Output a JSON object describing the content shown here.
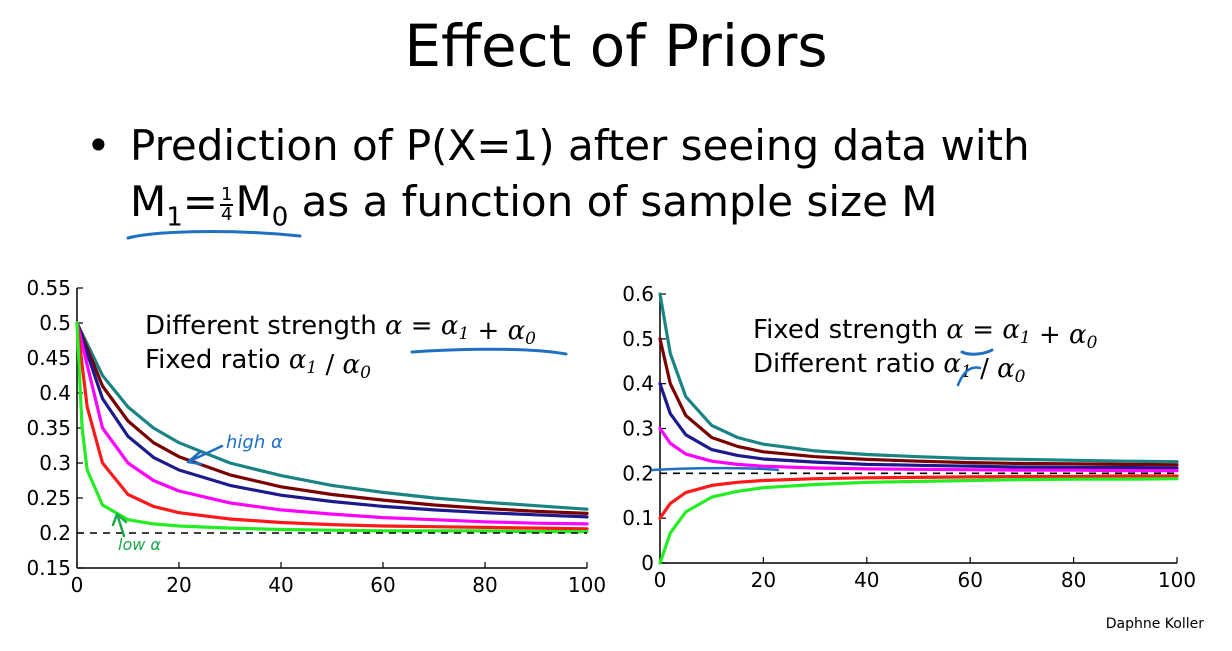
{
  "slide": {
    "title": "Effect of Priors",
    "bullet_symbol": "•",
    "bullet_line1": "Prediction of P(X=1) after seeing data with",
    "bullet_line2_formula": {
      "m1": "M",
      "sub1": "1",
      "eq": "=",
      "frac_num": "1",
      "frac_den": "4",
      "m0": "M",
      "sub0": "0"
    },
    "bullet_line2_rest": "as a function of sample size M",
    "credit": "Daphne Koller"
  },
  "handwriting": {
    "left_high": "high α",
    "left_low": "low α"
  },
  "colors": {
    "teal": "#1a8484",
    "maroon": "#7a0000",
    "navy": "#1c1a8c",
    "magenta": "#ff00ff",
    "red": "#ff1a1a",
    "green": "#22ee22",
    "ink_blue": "#1f6fc2",
    "ink_green": "#1aa84a"
  },
  "chart_data": [
    {
      "type": "line",
      "xlim": [
        0,
        100
      ],
      "ylim": [
        0.15,
        0.55
      ],
      "xticks": [
        0,
        20,
        40,
        60,
        80,
        100
      ],
      "xtick_labels": [
        "0",
        "20",
        "40",
        "60",
        "80",
        "100"
      ],
      "yticks": [
        0.15,
        0.2,
        0.25,
        0.3,
        0.35,
        0.4,
        0.45,
        0.5,
        0.55
      ],
      "ytick_labels": [
        "0.15",
        "0.2",
        "0.25",
        "0.3",
        "0.35",
        "0.4",
        "0.45",
        "0.5",
        "0.55"
      ],
      "annotation_lines": [
        {
          "text": "Different strength ",
          "formula": [
            "α",
            " = ",
            "α",
            "1",
            " + ",
            "α",
            "0"
          ]
        },
        {
          "text": "Fixed ratio ",
          "formula": [
            "α",
            "1",
            " / ",
            "α",
            "0"
          ]
        }
      ],
      "reference_line": {
        "y": 0.2,
        "style": "dashed"
      },
      "series": [
        {
          "color": "#1a8484",
          "x": [
            0,
            5,
            10,
            15,
            20,
            30,
            40,
            50,
            60,
            70,
            80,
            90,
            100
          ],
          "y": [
            0.5,
            0.425,
            0.38,
            0.35,
            0.329,
            0.3,
            0.282,
            0.268,
            0.258,
            0.25,
            0.244,
            0.239,
            0.234
          ]
        },
        {
          "color": "#7a0000",
          "x": [
            0,
            5,
            10,
            15,
            20,
            30,
            40,
            50,
            60,
            70,
            80,
            90,
            100
          ],
          "y": [
            0.5,
            0.41,
            0.36,
            0.329,
            0.309,
            0.283,
            0.266,
            0.255,
            0.247,
            0.24,
            0.235,
            0.231,
            0.228
          ]
        },
        {
          "color": "#1c1a8c",
          "x": [
            0,
            5,
            10,
            15,
            20,
            30,
            40,
            50,
            60,
            70,
            80,
            90,
            100
          ],
          "y": [
            0.5,
            0.392,
            0.338,
            0.308,
            0.29,
            0.268,
            0.254,
            0.245,
            0.238,
            0.233,
            0.229,
            0.226,
            0.223
          ]
        },
        {
          "color": "#ff00ff",
          "x": [
            0,
            5,
            10,
            15,
            20,
            30,
            40,
            50,
            60,
            70,
            80,
            90,
            100
          ],
          "y": [
            0.5,
            0.35,
            0.3,
            0.275,
            0.26,
            0.243,
            0.233,
            0.227,
            0.222,
            0.219,
            0.216,
            0.214,
            0.213
          ]
        },
        {
          "color": "#ff1a1a",
          "x": [
            0,
            2,
            5,
            10,
            15,
            20,
            30,
            40,
            50,
            60,
            70,
            80,
            90,
            100
          ],
          "y": [
            0.5,
            0.38,
            0.3,
            0.255,
            0.238,
            0.229,
            0.22,
            0.215,
            0.212,
            0.21,
            0.209,
            0.208,
            0.207,
            0.206
          ]
        },
        {
          "color": "#22ee22",
          "x": [
            0,
            1,
            2,
            5,
            10,
            15,
            20,
            30,
            40,
            50,
            60,
            70,
            80,
            90,
            100
          ],
          "y": [
            0.5,
            0.35,
            0.29,
            0.24,
            0.219,
            0.213,
            0.21,
            0.207,
            0.205,
            0.204,
            0.203,
            0.203,
            0.203,
            0.202,
            0.202
          ]
        }
      ]
    },
    {
      "type": "line",
      "xlim": [
        0,
        100
      ],
      "ylim": [
        0,
        0.6
      ],
      "xticks": [
        0,
        20,
        40,
        60,
        80,
        100
      ],
      "xtick_labels": [
        "0",
        "20",
        "40",
        "60",
        "80",
        "100"
      ],
      "yticks": [
        0,
        0.1,
        0.2,
        0.3,
        0.4,
        0.5,
        0.6
      ],
      "ytick_labels": [
        "0",
        "0.1",
        "0.2",
        "0.3",
        "0.4",
        "0.5",
        "0.6"
      ],
      "annotation_lines": [
        {
          "text": "Fixed strength ",
          "formula": [
            "α",
            " = ",
            "α",
            "1",
            " + ",
            "α",
            "0"
          ]
        },
        {
          "text": "Different ratio ",
          "formula": [
            "α",
            "1",
            " / ",
            "α",
            "0"
          ]
        }
      ],
      "reference_line": {
        "y": 0.2,
        "style": "dashed"
      },
      "series": [
        {
          "color": "#1a8484",
          "x": [
            0,
            2,
            5,
            10,
            15,
            20,
            30,
            40,
            50,
            60,
            70,
            80,
            90,
            100
          ],
          "y": [
            0.6,
            0.467,
            0.371,
            0.307,
            0.28,
            0.265,
            0.25,
            0.242,
            0.237,
            0.233,
            0.231,
            0.229,
            0.227,
            0.226
          ]
        },
        {
          "color": "#7a0000",
          "x": [
            0,
            2,
            5,
            10,
            15,
            20,
            30,
            40,
            50,
            60,
            70,
            80,
            90,
            100
          ],
          "y": [
            0.5,
            0.4,
            0.329,
            0.28,
            0.26,
            0.248,
            0.237,
            0.231,
            0.227,
            0.224,
            0.222,
            0.221,
            0.22,
            0.219
          ]
        },
        {
          "color": "#1c1a8c",
          "x": [
            0,
            2,
            5,
            10,
            15,
            20,
            30,
            40,
            50,
            60,
            70,
            80,
            90,
            100
          ],
          "y": [
            0.4,
            0.333,
            0.286,
            0.253,
            0.24,
            0.232,
            0.225,
            0.22,
            0.218,
            0.216,
            0.214,
            0.213,
            0.213,
            0.212
          ]
        },
        {
          "color": "#ff00ff",
          "x": [
            0,
            2,
            5,
            10,
            15,
            20,
            30,
            40,
            50,
            60,
            70,
            80,
            90,
            100
          ],
          "y": [
            0.3,
            0.267,
            0.243,
            0.227,
            0.22,
            0.216,
            0.212,
            0.21,
            0.209,
            0.208,
            0.207,
            0.207,
            0.206,
            0.206
          ]
        },
        {
          "color": "#ff1a1a",
          "x": [
            0,
            2,
            5,
            10,
            15,
            20,
            30,
            40,
            50,
            60,
            70,
            80,
            90,
            100
          ],
          "y": [
            0.1,
            0.133,
            0.157,
            0.173,
            0.18,
            0.184,
            0.188,
            0.19,
            0.191,
            0.192,
            0.193,
            0.193,
            0.194,
            0.194
          ]
        },
        {
          "color": "#22ee22",
          "x": [
            0,
            2,
            5,
            10,
            15,
            20,
            30,
            40,
            50,
            60,
            70,
            80,
            90,
            100
          ],
          "y": [
            0.0,
            0.067,
            0.114,
            0.147,
            0.16,
            0.168,
            0.175,
            0.18,
            0.182,
            0.184,
            0.186,
            0.187,
            0.187,
            0.188
          ]
        }
      ]
    }
  ]
}
